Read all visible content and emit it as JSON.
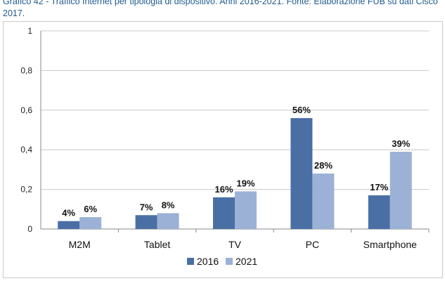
{
  "title": "Grafico 42 - Traffico Internet per tipologia di dispositivo. Anni 2016-2021. Fonte: Elaborazione FUB su dati Cisco 2017.",
  "chart_data": {
    "type": "bar",
    "categories": [
      "M2M",
      "Tablet",
      "TV",
      "PC",
      "Smartphone"
    ],
    "series": [
      {
        "name": "2016",
        "values": [
          0.04,
          0.07,
          0.16,
          0.56,
          0.17
        ],
        "labels": [
          "4%",
          "7%",
          "16%",
          "56%",
          "17%"
        ],
        "color": "#4a6fa5"
      },
      {
        "name": "2021",
        "values": [
          0.06,
          0.08,
          0.19,
          0.28,
          0.39
        ],
        "labels": [
          "6%",
          "8%",
          "19%",
          "28%",
          "39%"
        ],
        "color": "#9cb1d6"
      }
    ],
    "ylim": [
      0,
      1
    ],
    "yticks": [
      0,
      0.2,
      0.4,
      0.6,
      0.8,
      1
    ],
    "ytick_labels": [
      "0",
      "0,2",
      "0,4",
      "0,6",
      "0,8",
      "1"
    ],
    "grid": true,
    "legend": "bottom"
  }
}
